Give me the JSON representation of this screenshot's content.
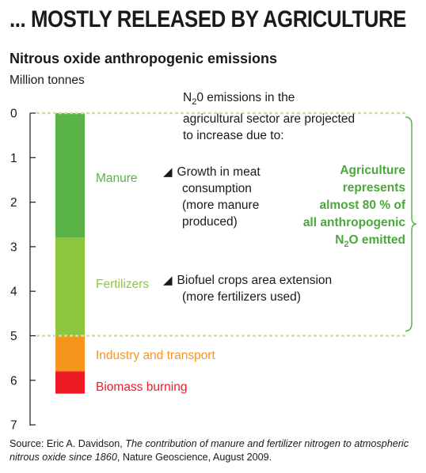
{
  "header": {
    "title": "... MOSTLY RELEASED BY AGRICULTURE"
  },
  "colors": {
    "manure": "#59b346",
    "fertilizers": "#8dc63f",
    "industry": "#f7941d",
    "biomass": "#ed1c24",
    "agriculture_text": "#4aa83a",
    "dashed_line": "#c9e3a6"
  },
  "chart_data": {
    "type": "bar",
    "subtype": "stacked-single-column",
    "title": "Nitrous oxide anthropogenic emissions",
    "ylabel": "Million tonnes",
    "ylim": [
      0,
      7
    ],
    "yticks": [
      0,
      1,
      2,
      3,
      4,
      5,
      6,
      7
    ],
    "y_direction": "downward",
    "segments": [
      {
        "name": "Manure",
        "start": 0,
        "end": 2.8,
        "value": 2.8,
        "color": "#59b346"
      },
      {
        "name": "Fertilizers",
        "start": 2.8,
        "end": 5.0,
        "value": 2.2,
        "color": "#8dc63f"
      },
      {
        "name": "Industry and transport",
        "start": 5.0,
        "end": 5.8,
        "value": 0.8,
        "color": "#f7941d"
      },
      {
        "name": "Biomass burning",
        "start": 5.8,
        "end": 6.3,
        "value": 0.5,
        "color": "#ed1c24"
      }
    ],
    "legend_placement": "inline-right"
  },
  "annotations": {
    "projection_intro": {
      "pre": "N",
      "sub": "2",
      "post": "0 emissions in the",
      "line2": "agricultural sector are projected",
      "line3": "to increase due to:"
    },
    "manure_cause": [
      "Growth in meat",
      "consumption",
      "(more manure",
      "produced)"
    ],
    "fertilizer_cause": [
      "Biofuel crops area extension",
      "(more fertilizers used)"
    ],
    "agriculture_share": {
      "line1": "Agriculture",
      "line2": "represents",
      "line3": "almost 80 % of",
      "line4": "all anthropogenic",
      "line5_pre": "N",
      "line5_sub": "2",
      "line5_post": "O emitted"
    },
    "caret": "◢"
  },
  "source": {
    "prefix": "Source: Eric A. Davidson, ",
    "title": "The contribution of manure and fertilizer nitrogen to atmospheric nitrous oxide since 1860",
    "suffix": ", Nature Geoscience, August 2009."
  }
}
